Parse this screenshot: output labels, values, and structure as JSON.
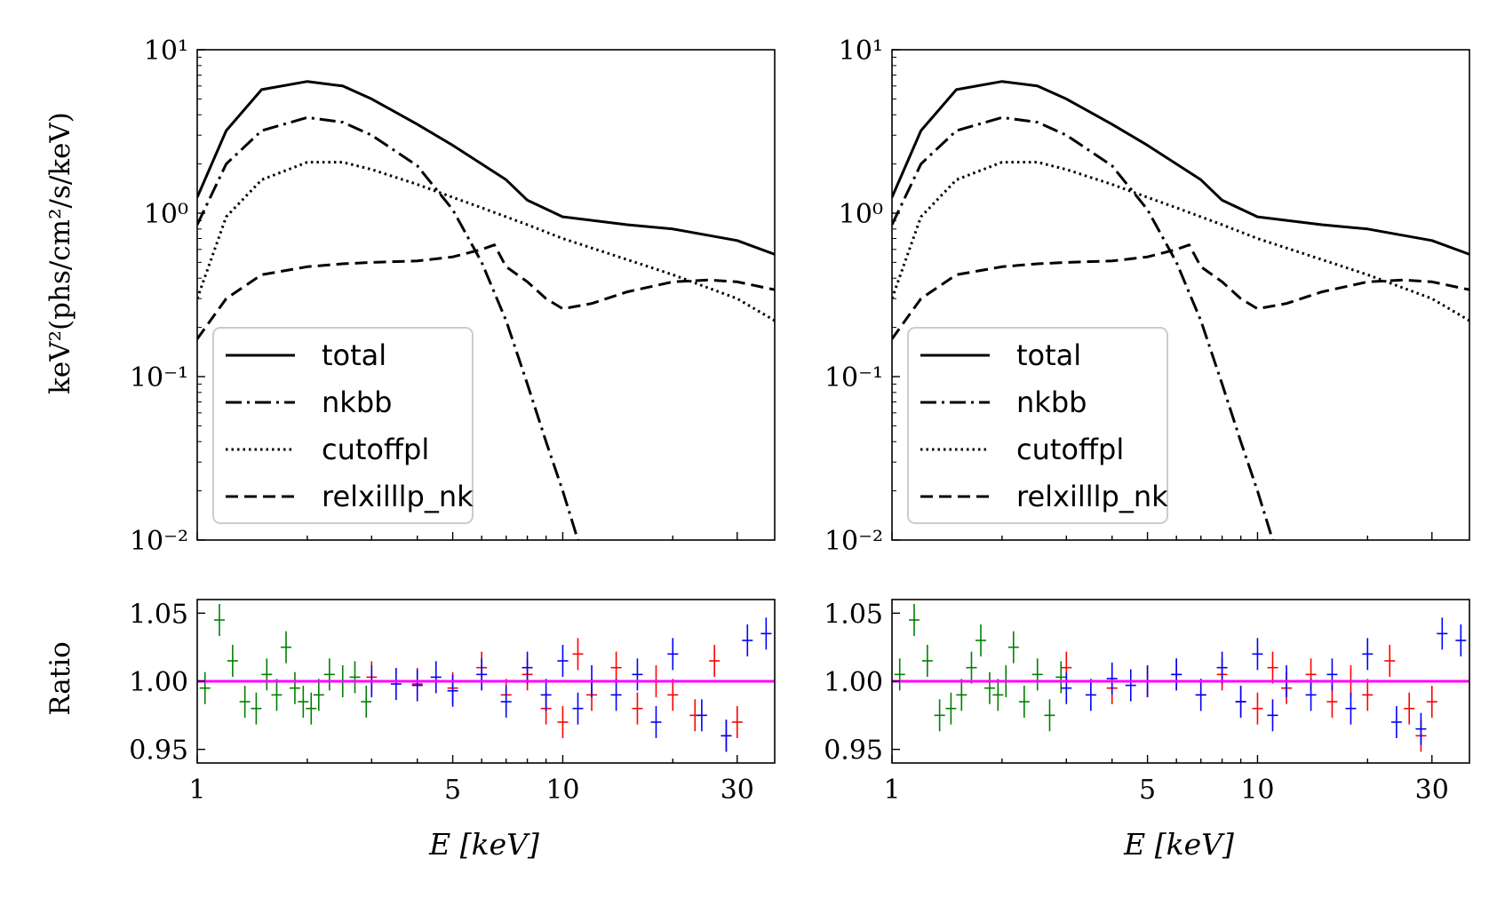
{
  "figure": {
    "ylabel_top": "keV²(phs/cm²/s/keV)",
    "ylabel_bottom": "Ratio",
    "xlabel": "E [keV]",
    "top_ytick_labels": [
      "10¹",
      "10⁰",
      "10⁻¹",
      "10⁻²"
    ],
    "bottom_ytick_labels": [
      "1.05",
      "1.00",
      "0.95"
    ],
    "xtick_labels": [
      "1",
      "5",
      "10",
      "30"
    ],
    "legend": [
      "total",
      "nkbb",
      "cutoffpl",
      "relxilllp_nk"
    ],
    "colors": {
      "axes": "#000000",
      "reference_line": "#ff00ff",
      "data_green": "#008000",
      "data_red": "#ff0000",
      "data_blue": "#0000ff"
    }
  },
  "chart_data": [
    {
      "type": "line",
      "panel": "top-left",
      "xscale": "log",
      "yscale": "log",
      "xlim": [
        1,
        38
      ],
      "ylim": [
        0.01,
        10
      ],
      "xlabel": "",
      "ylabel": "keV²(phs/cm²/s/keV)",
      "legend_position": "lower-left",
      "series": [
        {
          "name": "total",
          "style": "solid",
          "x": [
            1.0,
            1.2,
            1.5,
            2.0,
            2.5,
            3.0,
            4.0,
            5.0,
            6.0,
            7.0,
            8.0,
            10.0,
            15.0,
            20.0,
            30.0,
            38.0
          ],
          "y": [
            1.25,
            3.2,
            5.7,
            6.4,
            6.0,
            5.0,
            3.5,
            2.6,
            2.0,
            1.6,
            1.2,
            0.95,
            0.85,
            0.8,
            0.68,
            0.56
          ]
        },
        {
          "name": "nkbb",
          "style": "dashdot",
          "x": [
            1.0,
            1.2,
            1.5,
            2.0,
            2.5,
            3.0,
            4.0,
            5.0,
            6.0,
            7.0,
            8.0,
            9.0,
            10.0,
            11.0
          ],
          "y": [
            0.85,
            2.0,
            3.2,
            3.85,
            3.6,
            3.0,
            1.95,
            1.05,
            0.5,
            0.22,
            0.09,
            0.04,
            0.02,
            0.01
          ]
        },
        {
          "name": "cutoffpl",
          "style": "dotted",
          "x": [
            1.0,
            1.2,
            1.5,
            2.0,
            2.5,
            3.0,
            4.0,
            5.0,
            6.0,
            8.0,
            10.0,
            15.0,
            20.0,
            30.0,
            38.0
          ],
          "y": [
            0.3,
            0.95,
            1.6,
            2.05,
            2.05,
            1.85,
            1.5,
            1.25,
            1.08,
            0.85,
            0.7,
            0.52,
            0.42,
            0.3,
            0.22
          ]
        },
        {
          "name": "relxilllp_nk",
          "style": "dashed",
          "x": [
            1.0,
            1.2,
            1.5,
            2.0,
            2.5,
            3.0,
            4.0,
            5.0,
            6.0,
            6.5,
            7.0,
            8.0,
            9.0,
            10.0,
            12.0,
            15.0,
            20.0,
            25.0,
            30.0,
            38.0
          ],
          "y": [
            0.17,
            0.3,
            0.42,
            0.47,
            0.49,
            0.5,
            0.51,
            0.54,
            0.6,
            0.64,
            0.47,
            0.38,
            0.3,
            0.26,
            0.28,
            0.33,
            0.38,
            0.39,
            0.38,
            0.34
          ]
        }
      ]
    },
    {
      "type": "line",
      "panel": "top-right",
      "xscale": "log",
      "yscale": "log",
      "xlim": [
        1,
        38
      ],
      "ylim": [
        0.01,
        10
      ],
      "xlabel": "",
      "ylabel": "",
      "legend_position": "lower-left",
      "series": [
        {
          "name": "total",
          "style": "solid",
          "x": [
            1.0,
            1.2,
            1.5,
            2.0,
            2.5,
            3.0,
            4.0,
            5.0,
            6.0,
            7.0,
            8.0,
            10.0,
            15.0,
            20.0,
            30.0,
            38.0
          ],
          "y": [
            1.25,
            3.2,
            5.7,
            6.4,
            6.0,
            5.0,
            3.5,
            2.6,
            2.0,
            1.6,
            1.2,
            0.95,
            0.85,
            0.8,
            0.68,
            0.56
          ]
        },
        {
          "name": "nkbb",
          "style": "dashdot",
          "x": [
            1.0,
            1.2,
            1.5,
            2.0,
            2.5,
            3.0,
            4.0,
            5.0,
            6.0,
            7.0,
            8.0,
            9.0,
            10.0,
            11.0
          ],
          "y": [
            0.85,
            2.0,
            3.2,
            3.85,
            3.6,
            3.0,
            1.95,
            1.05,
            0.5,
            0.22,
            0.09,
            0.04,
            0.02,
            0.01
          ]
        },
        {
          "name": "cutoffpl",
          "style": "dotted",
          "x": [
            1.0,
            1.2,
            1.5,
            2.0,
            2.5,
            3.0,
            4.0,
            5.0,
            6.0,
            8.0,
            10.0,
            15.0,
            20.0,
            30.0,
            38.0
          ],
          "y": [
            0.3,
            0.95,
            1.6,
            2.05,
            2.05,
            1.85,
            1.5,
            1.25,
            1.08,
            0.85,
            0.7,
            0.52,
            0.42,
            0.3,
            0.22
          ]
        },
        {
          "name": "relxilllp_nk",
          "style": "dashed",
          "x": [
            1.0,
            1.2,
            1.5,
            2.0,
            2.5,
            3.0,
            4.0,
            5.0,
            6.0,
            6.5,
            7.0,
            8.0,
            9.0,
            10.0,
            12.0,
            15.0,
            20.0,
            25.0,
            30.0,
            38.0
          ],
          "y": [
            0.17,
            0.3,
            0.42,
            0.47,
            0.49,
            0.5,
            0.51,
            0.54,
            0.6,
            0.64,
            0.47,
            0.38,
            0.3,
            0.26,
            0.28,
            0.33,
            0.38,
            0.39,
            0.38,
            0.34
          ]
        }
      ]
    },
    {
      "type": "scatter",
      "panel": "bottom-left",
      "xscale": "log",
      "xlim": [
        1,
        38
      ],
      "ylim": [
        0.94,
        1.06
      ],
      "xlabel": "E [keV]",
      "ylabel": "Ratio",
      "reference_line": 1.0,
      "series": [
        {
          "color": "green",
          "errorbars": true,
          "x": [
            1.05,
            1.15,
            1.25,
            1.35,
            1.45,
            1.55,
            1.65,
            1.75,
            1.85,
            1.95,
            2.05,
            2.15,
            2.3,
            2.5,
            2.7,
            2.9
          ],
          "y": [
            0.995,
            1.045,
            1.015,
            0.985,
            0.98,
            1.005,
            0.99,
            1.025,
            0.995,
            0.985,
            0.98,
            0.99,
            1.005,
            1.0,
            1.003,
            0.985
          ]
        },
        {
          "color": "red",
          "errorbars": true,
          "x": [
            3.0,
            4.0,
            5.0,
            6.0,
            7.0,
            8.0,
            9.0,
            10.0,
            11.0,
            12.0,
            14.0,
            16.0,
            18.0,
            20.0,
            23.0,
            26.0,
            28.0,
            30.0
          ],
          "y": [
            1.003,
            0.998,
            0.995,
            1.01,
            0.99,
            1.005,
            0.98,
            0.97,
            1.02,
            0.99,
            1.01,
            0.98,
            1.0,
            0.99,
            0.975,
            1.015,
            0.96,
            0.97
          ]
        },
        {
          "color": "blue",
          "errorbars": true,
          "x": [
            3.0,
            3.5,
            4.0,
            4.5,
            5.0,
            6.0,
            7.0,
            8.0,
            9.0,
            10.0,
            11.0,
            12.0,
            14.0,
            16.0,
            18.0,
            20.0,
            24.0,
            28.0,
            32.0,
            36.0
          ],
          "y": [
            1.0,
            0.998,
            0.997,
            1.003,
            0.993,
            1.005,
            0.985,
            1.01,
            0.99,
            1.015,
            0.98,
            1.0,
            0.99,
            1.005,
            0.97,
            1.02,
            0.975,
            0.96,
            1.03,
            1.035
          ]
        }
      ]
    },
    {
      "type": "scatter",
      "panel": "bottom-right",
      "xscale": "log",
      "xlim": [
        1,
        38
      ],
      "ylim": [
        0.94,
        1.06
      ],
      "xlabel": "E [keV]",
      "ylabel": "",
      "reference_line": 1.0,
      "series": [
        {
          "color": "green",
          "errorbars": true,
          "x": [
            1.05,
            1.15,
            1.25,
            1.35,
            1.45,
            1.55,
            1.65,
            1.75,
            1.85,
            1.95,
            2.05,
            2.15,
            2.3,
            2.5,
            2.7,
            2.9
          ],
          "y": [
            1.005,
            1.045,
            1.015,
            0.975,
            0.98,
            0.99,
            1.01,
            1.03,
            0.995,
            0.99,
            1.0,
            1.025,
            0.985,
            1.005,
            0.975,
            1.003
          ]
        },
        {
          "color": "red",
          "errorbars": true,
          "x": [
            3.0,
            4.0,
            5.0,
            6.0,
            7.0,
            8.0,
            9.0,
            10.0,
            11.0,
            12.0,
            14.0,
            16.0,
            18.0,
            20.0,
            23.0,
            26.0,
            28.0,
            30.0
          ],
          "y": [
            1.01,
            0.995,
            1.0,
            1.005,
            0.99,
            1.005,
            0.985,
            0.98,
            1.01,
            0.995,
            1.005,
            0.985,
            1.0,
            0.99,
            1.015,
            0.98,
            0.96,
            0.985
          ]
        },
        {
          "color": "blue",
          "errorbars": true,
          "x": [
            3.0,
            3.5,
            4.0,
            4.5,
            5.0,
            6.0,
            7.0,
            8.0,
            9.0,
            10.0,
            11.0,
            12.0,
            14.0,
            16.0,
            18.0,
            20.0,
            24.0,
            28.0,
            32.0,
            36.0
          ],
          "y": [
            0.995,
            0.99,
            1.002,
            0.997,
            1.0,
            1.005,
            0.99,
            1.01,
            0.985,
            1.02,
            0.975,
            1.0,
            0.99,
            1.005,
            0.98,
            1.02,
            0.97,
            0.965,
            1.035,
            1.03
          ]
        }
      ]
    }
  ]
}
